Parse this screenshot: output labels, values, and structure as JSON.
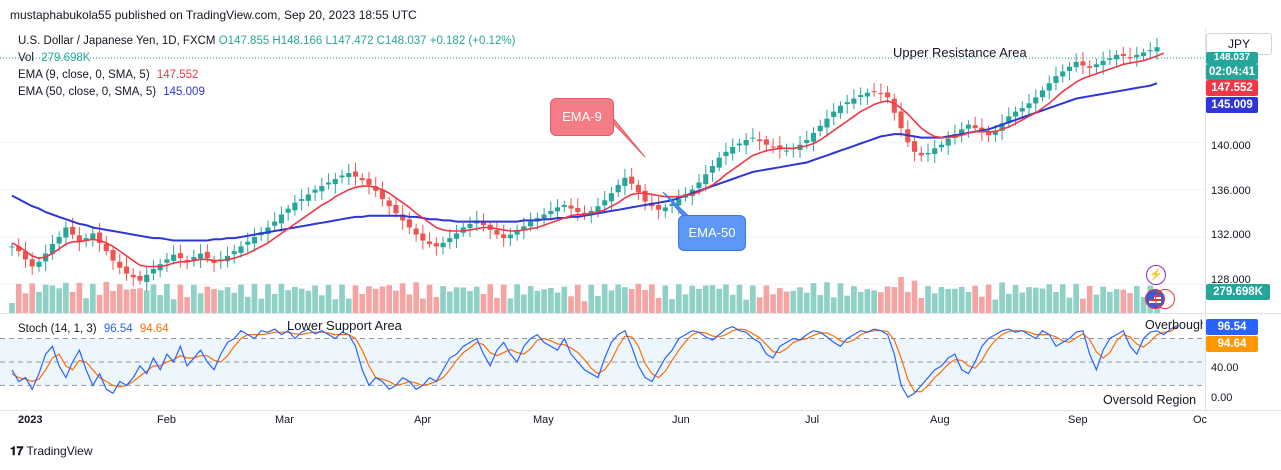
{
  "publisher_line": "mustaphabukola55 published on TradingView.com, Sep 20, 2023 18:55 UTC",
  "symbol_line": {
    "name": "U.S. Dollar / Japanese Yen, 1D, FXCM",
    "ohlc": "O147.855 H148.166 L147.472 C148.037 +0.182 (+0.12%)",
    "vol_label": "Vol",
    "vol_value": "279.698K"
  },
  "indicators": {
    "ema9": {
      "label": "EMA (9, close, 0, SMA, 5)",
      "value": "147.552",
      "color": "#f23645"
    },
    "ema50": {
      "label": "EMA (50, close, 0, SMA, 5)",
      "value": "145.009",
      "color": "#2e36d6"
    }
  },
  "stoch": {
    "label": "Stoch (14, 1, 3)",
    "k_value": "96.54",
    "d_value": "94.64",
    "k_color": "#2962ff",
    "d_color": "#ff6d00"
  },
  "annotations": {
    "upper_resistance": "Upper Resistance Area",
    "lower_support": "Lower Support Area",
    "overbought": "Overbought",
    "oversold": "Oversold Region",
    "ema9_callout": "EMA-9",
    "ema50_callout": "EMA-50"
  },
  "currency_button": "JPY",
  "price_tags": {
    "last": "148.037",
    "countdown": "02:04:41",
    "ema9": "147.552",
    "ema50": "145.009",
    "volume": "279.698K",
    "stoch_k": "96.54",
    "stoch_d": "94.64"
  },
  "price_axis_ticks": [
    "140.000",
    "136.000",
    "132.000",
    "128.000"
  ],
  "stoch_axis_ticks": [
    "40.00",
    "0.00"
  ],
  "time_axis_ticks": [
    "2023",
    "Feb",
    "Mar",
    "Apr",
    "May",
    "Jun",
    "Jul",
    "Aug",
    "Sep",
    "Oc"
  ],
  "brand_text": "TradingView",
  "colors": {
    "up": "#26a69a",
    "down": "#ef5350",
    "up_vol": "#8fd0c7",
    "down_vol": "#f4a5a3"
  },
  "chart_data": {
    "type": "candlestick",
    "title": "U.S. Dollar / Japanese Yen, 1D, FXCM",
    "y_range": [
      126.5,
      149.5
    ],
    "stoch_range": [
      -5,
      110
    ],
    "series": [
      {
        "name": "EMA (9, close, 0, SMA, 5)",
        "color": "#f23645"
      },
      {
        "name": "EMA (50, close, 0, SMA, 5)",
        "color": "#2e36d6"
      }
    ],
    "closes": [
      131.2,
      130.8,
      130.1,
      129.5,
      129.9,
      130.6,
      131.4,
      132.0,
      132.8,
      132.2,
      131.6,
      131.9,
      132.3,
      131.5,
      130.8,
      130.0,
      129.4,
      128.9,
      128.6,
      128.3,
      128.8,
      129.3,
      129.7,
      130.1,
      130.5,
      130.2,
      129.9,
      130.3,
      130.6,
      130.2,
      129.8,
      130.1,
      130.4,
      130.8,
      131.2,
      131.6,
      132.0,
      132.4,
      132.8,
      133.3,
      133.9,
      134.4,
      134.9,
      135.2,
      135.6,
      136.0,
      136.3,
      136.6,
      136.9,
      137.2,
      137.4,
      137.1,
      136.8,
      136.4,
      135.9,
      135.2,
      134.6,
      134.0,
      133.4,
      132.8,
      132.2,
      131.7,
      131.4,
      131.2,
      131.5,
      131.9,
      132.3,
      132.8,
      133.1,
      133.4,
      133.0,
      132.6,
      132.2,
      131.9,
      132.2,
      132.6,
      132.9,
      133.3,
      133.6,
      133.9,
      134.2,
      134.5,
      134.7,
      134.4,
      134.1,
      133.9,
      134.2,
      134.6,
      135.1,
      135.7,
      136.4,
      137.0,
      136.5,
      135.8,
      135.0,
      134.6,
      134.3,
      134.5,
      134.8,
      135.2,
      135.6,
      136.0,
      136.6,
      137.3,
      138.0,
      138.7,
      139.2,
      139.6,
      139.9,
      140.2,
      140.4,
      140.1,
      139.8,
      139.6,
      139.4,
      139.3,
      139.5,
      139.8,
      140.2,
      140.8,
      141.4,
      142.0,
      142.6,
      143.1,
      143.4,
      143.7,
      144.0,
      144.2,
      144.3,
      144.1,
      143.8,
      142.5,
      141.2,
      140.0,
      139.2,
      138.9,
      139.1,
      139.5,
      139.8,
      140.3,
      140.7,
      141.1,
      141.5,
      141.2,
      140.9,
      140.6,
      141.0,
      141.6,
      142.2,
      142.6,
      142.9,
      143.3,
      143.8,
      144.4,
      145.0,
      145.6,
      146.0,
      146.4,
      146.8,
      146.5,
      146.3,
      146.6,
      146.9,
      147.1,
      147.4,
      147.3,
      147.1,
      147.4,
      147.6,
      147.8,
      148.04
    ],
    "ema9": [
      131.5,
      131.2,
      130.8,
      130.4,
      130.2,
      130.3,
      130.6,
      131.0,
      131.4,
      131.6,
      131.6,
      131.7,
      131.8,
      131.7,
      131.5,
      131.2,
      130.8,
      130.4,
      130.0,
      129.6,
      129.5,
      129.5,
      129.5,
      129.6,
      129.8,
      129.9,
      129.9,
      130.0,
      130.1,
      130.1,
      130.0,
      130.0,
      130.1,
      130.2,
      130.4,
      130.6,
      130.9,
      131.2,
      131.5,
      131.9,
      132.3,
      132.7,
      133.1,
      133.5,
      133.9,
      134.3,
      134.7,
      135.0,
      135.4,
      135.7,
      136.0,
      136.2,
      136.3,
      136.3,
      136.2,
      136.0,
      135.7,
      135.3,
      134.9,
      134.5,
      134.0,
      133.6,
      133.2,
      132.8,
      132.6,
      132.5,
      132.5,
      132.5,
      132.6,
      132.7,
      132.8,
      132.8,
      132.7,
      132.6,
      132.5,
      132.5,
      132.6,
      132.7,
      132.8,
      133.0,
      133.2,
      133.4,
      133.6,
      133.8,
      133.9,
      133.9,
      134.0,
      134.1,
      134.3,
      134.6,
      134.9,
      135.3,
      135.6,
      135.7,
      135.7,
      135.6,
      135.5,
      135.4,
      135.4,
      135.4,
      135.5,
      135.6,
      135.8,
      136.1,
      136.4,
      136.8,
      137.3,
      137.7,
      138.1,
      138.5,
      138.9,
      139.1,
      139.3,
      139.4,
      139.5,
      139.5,
      139.5,
      139.6,
      139.7,
      139.9,
      140.2,
      140.6,
      141.0,
      141.4,
      141.8,
      142.2,
      142.6,
      142.9,
      143.2,
      143.4,
      143.5,
      143.3,
      142.9,
      142.4,
      141.8,
      141.2,
      140.8,
      140.5,
      140.4,
      140.4,
      140.5,
      140.6,
      140.8,
      140.9,
      140.9,
      140.9,
      140.9,
      141.1,
      141.3,
      141.6,
      141.9,
      142.2,
      142.5,
      142.9,
      143.3,
      143.8,
      144.3,
      144.7,
      145.1,
      145.4,
      145.6,
      145.8,
      146.0,
      146.2,
      146.4,
      146.6,
      146.7,
      146.8,
      146.9,
      147.1,
      147.3,
      147.55
    ],
    "ema50": [
      135.5,
      135.2,
      134.9,
      134.6,
      134.4,
      134.1,
      133.9,
      133.7,
      133.5,
      133.3,
      133.1,
      133.0,
      132.8,
      132.7,
      132.6,
      132.5,
      132.4,
      132.3,
      132.2,
      132.1,
      132.0,
      131.9,
      131.9,
      131.8,
      131.7,
      131.7,
      131.7,
      131.7,
      131.7,
      131.7,
      131.8,
      131.8,
      131.9,
      131.9,
      132.0,
      132.1,
      132.2,
      132.3,
      132.4,
      132.5,
      132.6,
      132.7,
      132.8,
      132.9,
      133.0,
      133.1,
      133.2,
      133.3,
      133.4,
      133.5,
      133.6,
      133.7,
      133.7,
      133.8,
      133.8,
      133.8,
      133.8,
      133.8,
      133.8,
      133.7,
      133.7,
      133.6,
      133.5,
      133.5,
      133.4,
      133.4,
      133.3,
      133.3,
      133.3,
      133.3,
      133.3,
      133.3,
      133.3,
      133.3,
      133.3,
      133.3,
      133.4,
      133.4,
      133.4,
      133.5,
      133.5,
      133.6,
      133.6,
      133.7,
      133.7,
      133.8,
      133.9,
      134.0,
      134.1,
      134.2,
      134.3,
      134.4,
      134.5,
      134.6,
      134.7,
      134.8,
      134.9,
      135.0,
      135.1,
      135.3,
      135.5,
      135.7,
      135.9,
      136.1,
      136.3,
      136.5,
      136.7,
      136.9,
      137.1,
      137.3,
      137.5,
      137.6,
      137.7,
      137.8,
      137.9,
      138.0,
      138.1,
      138.2,
      138.3,
      138.5,
      138.7,
      138.9,
      139.1,
      139.3,
      139.5,
      139.7,
      139.9,
      140.1,
      140.3,
      140.5,
      140.6,
      140.7,
      140.7,
      140.6,
      140.5,
      140.4,
      140.4,
      140.4,
      140.4,
      140.5,
      140.6,
      140.7,
      140.8,
      140.9,
      141.0,
      141.1,
      141.3,
      141.5,
      141.7,
      141.9,
      142.1,
      142.3,
      142.5,
      142.7,
      142.9,
      143.1,
      143.3,
      143.5,
      143.7,
      143.8,
      143.9,
      144.0,
      144.1,
      144.2,
      144.3,
      144.4,
      144.5,
      144.6,
      144.7,
      144.8,
      145.0
    ],
    "stoch_k": [
      40,
      25,
      30,
      15,
      35,
      60,
      70,
      45,
      30,
      50,
      65,
      40,
      20,
      35,
      15,
      10,
      25,
      20,
      30,
      45,
      35,
      55,
      40,
      60,
      50,
      70,
      45,
      55,
      65,
      50,
      40,
      60,
      75,
      80,
      90,
      85,
      80,
      90,
      88,
      92,
      85,
      90,
      80,
      88,
      92,
      86,
      90,
      85,
      80,
      88,
      85,
      70,
      40,
      20,
      30,
      25,
      15,
      20,
      30,
      25,
      15,
      20,
      30,
      25,
      40,
      55,
      60,
      70,
      75,
      80,
      60,
      45,
      65,
      75,
      60,
      50,
      70,
      80,
      85,
      75,
      70,
      65,
      80,
      60,
      50,
      40,
      35,
      30,
      55,
      75,
      85,
      90,
      70,
      45,
      30,
      25,
      40,
      55,
      65,
      80,
      85,
      90,
      88,
      82,
      78,
      85,
      92,
      95,
      90,
      88,
      80,
      75,
      60,
      55,
      70,
      75,
      80,
      78,
      85,
      90,
      88,
      82,
      75,
      70,
      80,
      85,
      90,
      88,
      92,
      90,
      85,
      60,
      20,
      5,
      10,
      20,
      30,
      40,
      45,
      55,
      60,
      40,
      35,
      50,
      70,
      80,
      85,
      90,
      92,
      88,
      90,
      85,
      80,
      90,
      85,
      70,
      75,
      80,
      88,
      90,
      60,
      40,
      65,
      80,
      85,
      90,
      70,
      60,
      80,
      88,
      90,
      85,
      92,
      96.5
    ],
    "stoch_d": [
      35,
      30,
      28,
      25,
      28,
      40,
      55,
      60,
      45,
      40,
      52,
      50,
      40,
      30,
      25,
      20,
      18,
      20,
      25,
      32,
      38,
      45,
      45,
      50,
      53,
      58,
      55,
      55,
      58,
      58,
      52,
      50,
      58,
      70,
      80,
      85,
      85,
      85,
      86,
      88,
      88,
      88,
      86,
      85,
      87,
      88,
      88,
      87,
      85,
      85,
      85,
      80,
      65,
      45,
      30,
      28,
      25,
      20,
      22,
      25,
      23,
      20,
      22,
      25,
      30,
      40,
      52,
      62,
      68,
      75,
      72,
      62,
      58,
      62,
      66,
      62,
      60,
      67,
      78,
      80,
      77,
      73,
      72,
      68,
      62,
      53,
      42,
      35,
      40,
      52,
      70,
      83,
      82,
      70,
      48,
      35,
      30,
      38,
      52,
      65,
      76,
      85,
      88,
      87,
      83,
      82,
      85,
      90,
      92,
      91,
      86,
      81,
      72,
      63,
      62,
      67,
      75,
      78,
      80,
      84,
      87,
      87,
      83,
      77,
      75,
      78,
      85,
      88,
      90,
      90,
      89,
      78,
      55,
      28,
      12,
      12,
      20,
      30,
      38,
      47,
      53,
      52,
      45,
      42,
      52,
      67,
      78,
      85,
      89,
      90,
      90,
      88,
      85,
      85,
      85,
      82,
      77,
      75,
      81,
      86,
      79,
      63,
      55,
      62,
      77,
      85,
      82,
      73,
      69,
      76,
      85,
      88,
      89,
      94.6
    ]
  }
}
